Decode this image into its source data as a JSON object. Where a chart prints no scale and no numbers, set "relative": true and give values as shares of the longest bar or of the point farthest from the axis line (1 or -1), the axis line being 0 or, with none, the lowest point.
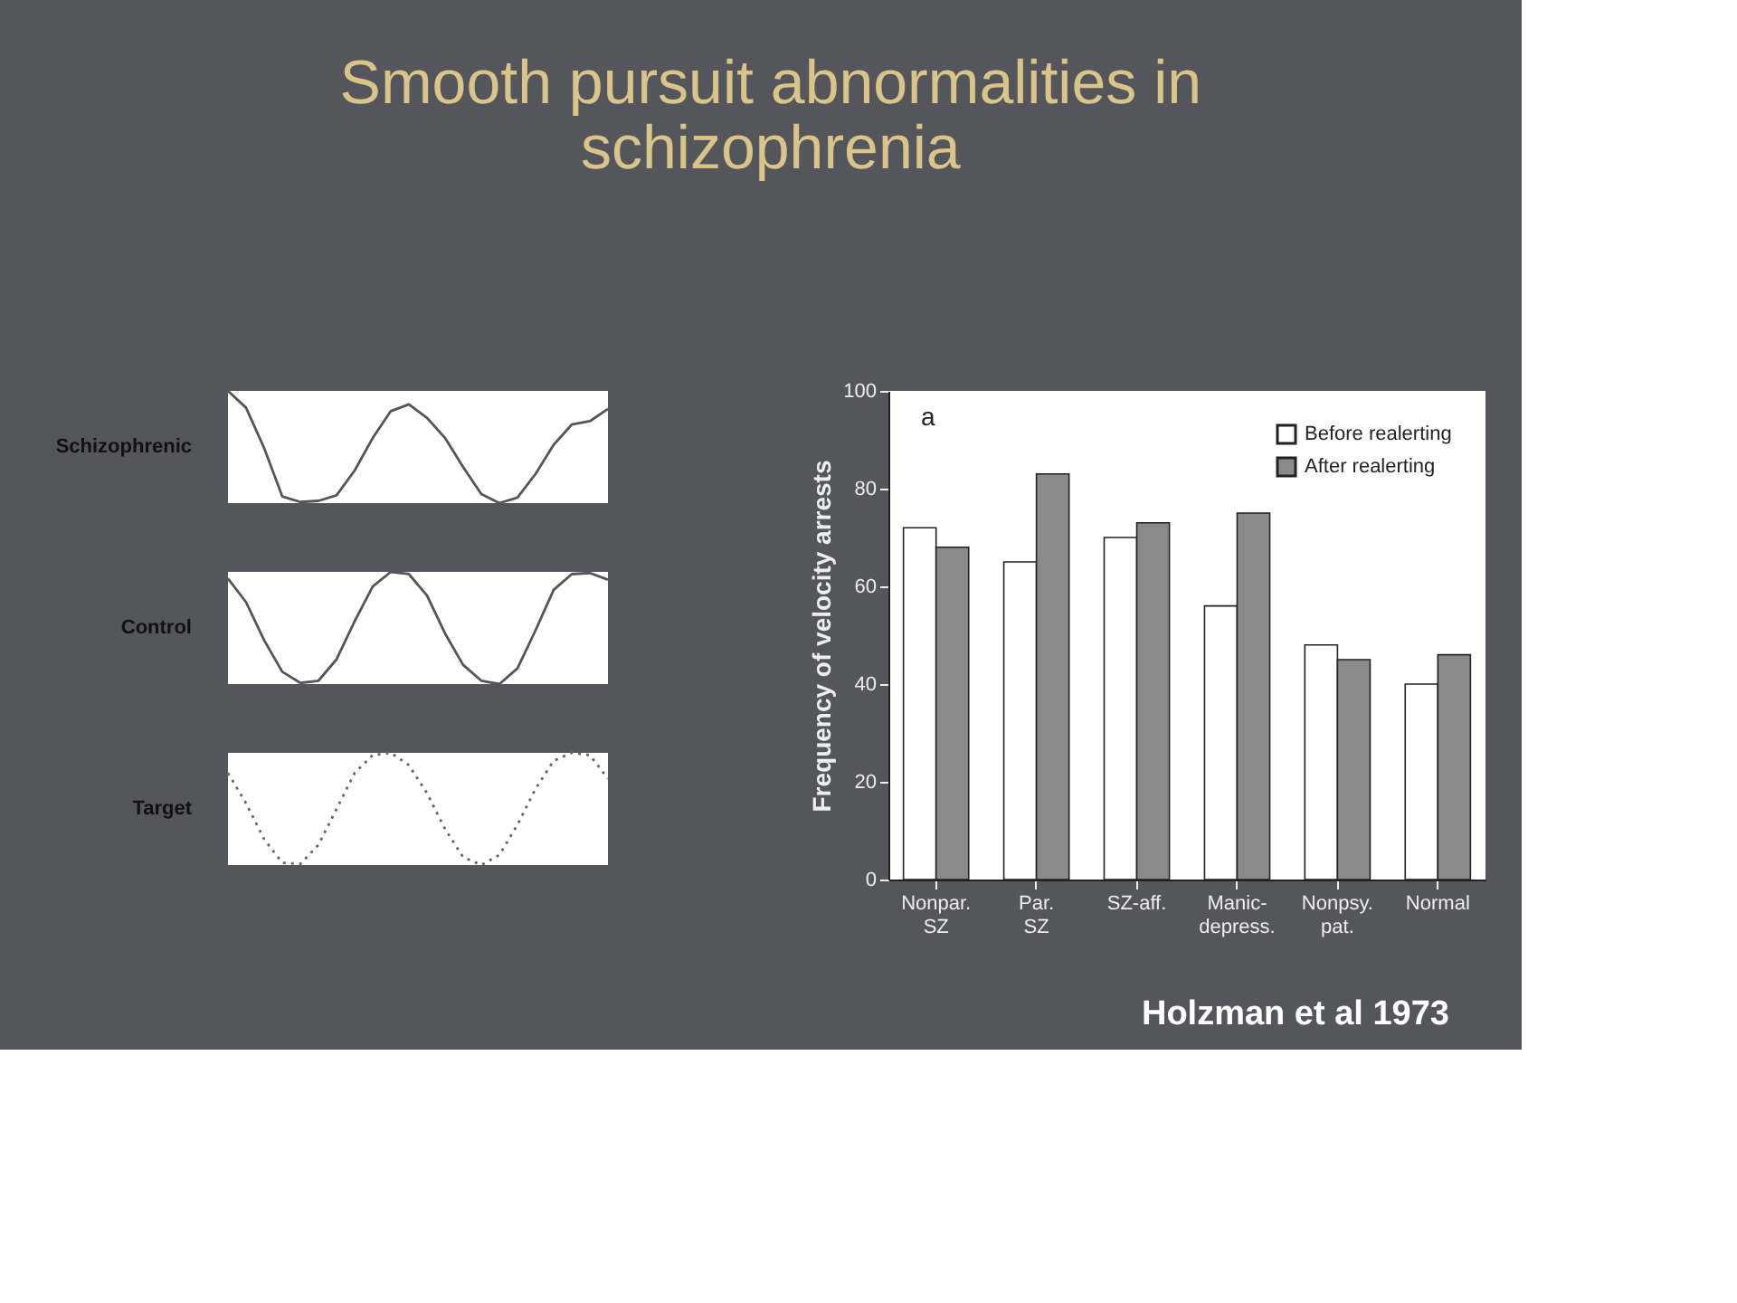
{
  "chart_data": [
    {
      "type": "line",
      "title": "Smooth pursuit abnormalities in schizophrenia",
      "relative": true,
      "categories": [
        null,
        null,
        null,
        null,
        null,
        null,
        null,
        null,
        null,
        null,
        null,
        null,
        null,
        null,
        null,
        null,
        null,
        null,
        null,
        null,
        null,
        null
      ],
      "series": [
        {
          "name": "Schizophrenic",
          "color": "#555555",
          "line_style": "solid",
          "values": [
            1.0,
            0.85,
            0.49,
            0.06,
            0.01,
            0.02,
            0.07,
            0.29,
            0.58,
            0.82,
            0.88,
            0.76,
            0.58,
            0.32,
            0.08,
            0.0,
            0.05,
            0.26,
            0.52,
            0.7,
            0.73,
            0.84
          ]
        }
      ]
    },
    {
      "type": "line",
      "relative": true,
      "categories": [
        null,
        null,
        null,
        null,
        null,
        null,
        null,
        null,
        null,
        null,
        null,
        null,
        null,
        null,
        null,
        null,
        null,
        null,
        null,
        null,
        null,
        null
      ],
      "series": [
        {
          "name": "Control",
          "color": "#555555",
          "line_style": "solid",
          "values": [
            0.94,
            0.73,
            0.39,
            0.11,
            0.01,
            0.03,
            0.22,
            0.56,
            0.87,
            1.0,
            0.98,
            0.79,
            0.45,
            0.17,
            0.03,
            0.0,
            0.14,
            0.48,
            0.84,
            0.98,
            0.99,
            0.93
          ]
        }
      ]
    },
    {
      "type": "line",
      "relative": true,
      "categories": [
        null,
        null,
        null,
        null,
        null,
        null,
        null,
        null,
        null,
        null,
        null,
        null,
        null,
        null,
        null,
        null,
        null,
        null,
        null,
        null,
        null,
        null
      ],
      "series": [
        {
          "name": "Target",
          "color": "#666666",
          "line_style": "dotted",
          "values": [
            0.82,
            0.55,
            0.23,
            0.02,
            0.01,
            0.18,
            0.5,
            0.82,
            0.98,
            1.0,
            0.89,
            0.64,
            0.32,
            0.07,
            0.0,
            0.09,
            0.36,
            0.68,
            0.93,
            1.0,
            0.98,
            0.77
          ]
        }
      ]
    },
    {
      "type": "bar",
      "ylabel": "Frequency of velocity arrests",
      "categories": [
        "Nonpar.\nSZ",
        "Par.\nSZ",
        "SZ-aff.",
        "Manic-\ndepress.",
        "Nonpsy.\npat.",
        "Normal"
      ],
      "ylim": [
        0,
        100
      ],
      "yticks": [
        0,
        20,
        40,
        60,
        80,
        100
      ],
      "legend": "top right",
      "annotations": [
        "a",
        "Holzman et al 1973"
      ],
      "series": [
        {
          "name": "Before realerting",
          "color": "#ffffff",
          "values": [
            72,
            65,
            70,
            56,
            48,
            40
          ]
        },
        {
          "name": "After realerting",
          "color": "#8a8a8a",
          "values": [
            68,
            83,
            73,
            75,
            45,
            46
          ]
        }
      ]
    }
  ]
}
